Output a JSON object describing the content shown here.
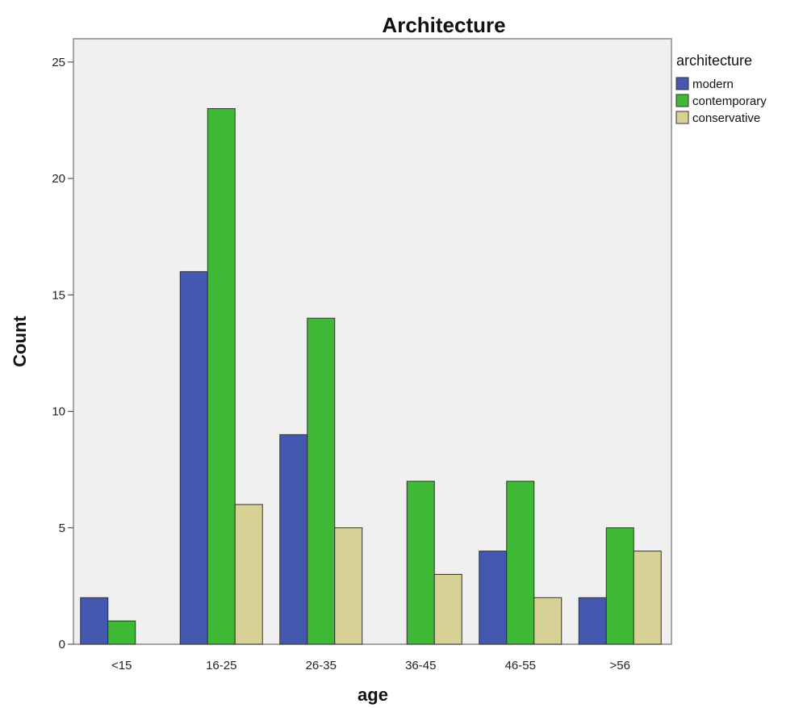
{
  "chart_data": {
    "type": "bar",
    "title": "Architecture",
    "xlabel": "age",
    "ylabel": "Count",
    "categories": [
      "<15",
      "16-25",
      "26-35",
      "36-45",
      "46-55",
      ">56"
    ],
    "series": [
      {
        "name": "modern",
        "color": "#4458b0",
        "values": [
          2,
          16,
          9,
          0,
          4,
          2
        ]
      },
      {
        "name": "contemporary",
        "color": "#3fb835",
        "values": [
          1,
          23,
          14,
          7,
          7,
          5
        ]
      },
      {
        "name": "conservative",
        "color": "#d8d196",
        "values": [
          0,
          6,
          5,
          3,
          2,
          4
        ]
      }
    ],
    "legend_title": "architecture",
    "legend_position": "right",
    "ylim": [
      0,
      26
    ],
    "yticks": [
      0,
      5,
      10,
      15,
      20,
      25
    ],
    "grid": false,
    "plot_background": "#f0f0f0"
  }
}
